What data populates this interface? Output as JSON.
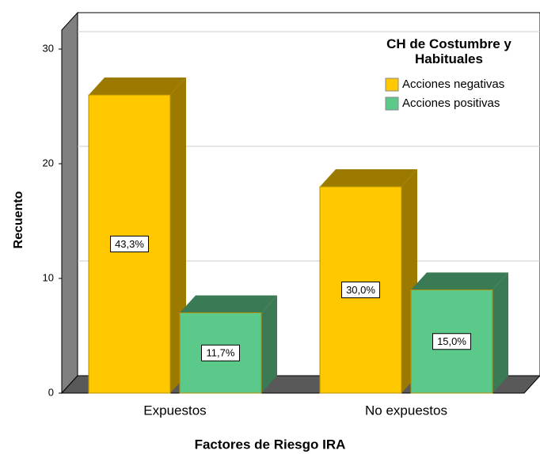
{
  "chart_data": {
    "type": "bar3d",
    "y_label": "Recuento",
    "x_label": "Factores de Riesgo IRA",
    "legend_title": "CH de Costumbre y Habituales",
    "categories": [
      "Expuestos",
      "No expuestos"
    ],
    "series": [
      {
        "name": "Acciones negativas",
        "color": "#ffc800",
        "side_color": "#9c7a00",
        "values": [
          26,
          18
        ],
        "percent_labels": [
          "43,3%",
          "30,0%"
        ]
      },
      {
        "name": "Acciones positivas",
        "color": "#5bc98a",
        "side_color": "#3a7a55",
        "values": [
          7,
          9
        ],
        "percent_labels": [
          "11,7%",
          "15,0%"
        ]
      }
    ],
    "ylim": [
      0,
      30
    ],
    "yticks": [
      0,
      10,
      20,
      30
    ],
    "grid": true
  }
}
